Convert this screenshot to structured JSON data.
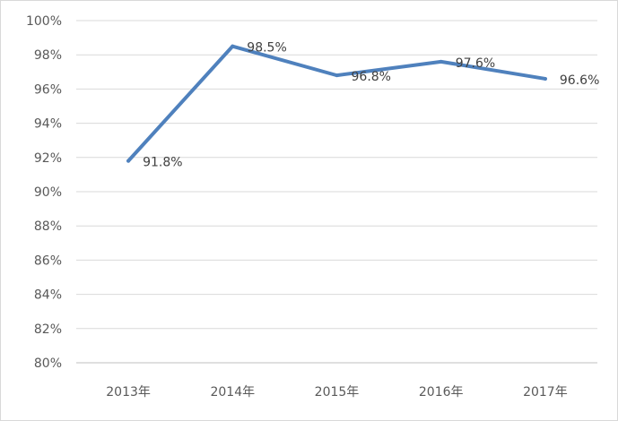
{
  "chart_data": {
    "type": "line",
    "categories": [
      "2013年",
      "2014年",
      "2015年",
      "2016年",
      "2017年"
    ],
    "series": [
      {
        "values": [
          91.8,
          98.5,
          96.8,
          97.6,
          96.6
        ],
        "labels": [
          "91.8%",
          "98.5%",
          "96.8%",
          "97.6%",
          "96.6%"
        ],
        "color": "#4f81bd"
      }
    ],
    "y_ticks": [
      "80%",
      "82%",
      "84%",
      "86%",
      "88%",
      "90%",
      "92%",
      "94%",
      "96%",
      "98%",
      "100%"
    ],
    "ylim": [
      80,
      100
    ],
    "ytick_step": 2,
    "grid": true,
    "legend": "none",
    "gridline_color": "#d9d9d9",
    "axis_color": "#bfbfbf",
    "text_color": "#595959"
  }
}
